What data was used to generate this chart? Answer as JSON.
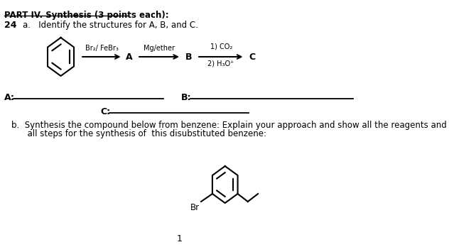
{
  "bg_color": "#ffffff",
  "title_text": "PART IV. Synthesis (3 points each):",
  "q24_label": "24",
  "qa_text": "a.   Identify the structures for A, B, and C.",
  "qb_line1": "b.  Synthesis the compound below from benzene: Explain your approach and show all the reagents and",
  "qb_line2": "      all steps for the synthesis of  this disubstituted benzene:",
  "reagent1": "Br₂/ FeBr₃",
  "label_A": "A",
  "reagent2": "Mg/ether",
  "label_B": "B",
  "reagent3a": "1) CO₂",
  "reagent3b": "2) H₃O⁺",
  "label_C": "C",
  "answer_A": "A:",
  "answer_B": "B:",
  "answer_C": "C:",
  "page_num": "1",
  "br_label": "Br"
}
